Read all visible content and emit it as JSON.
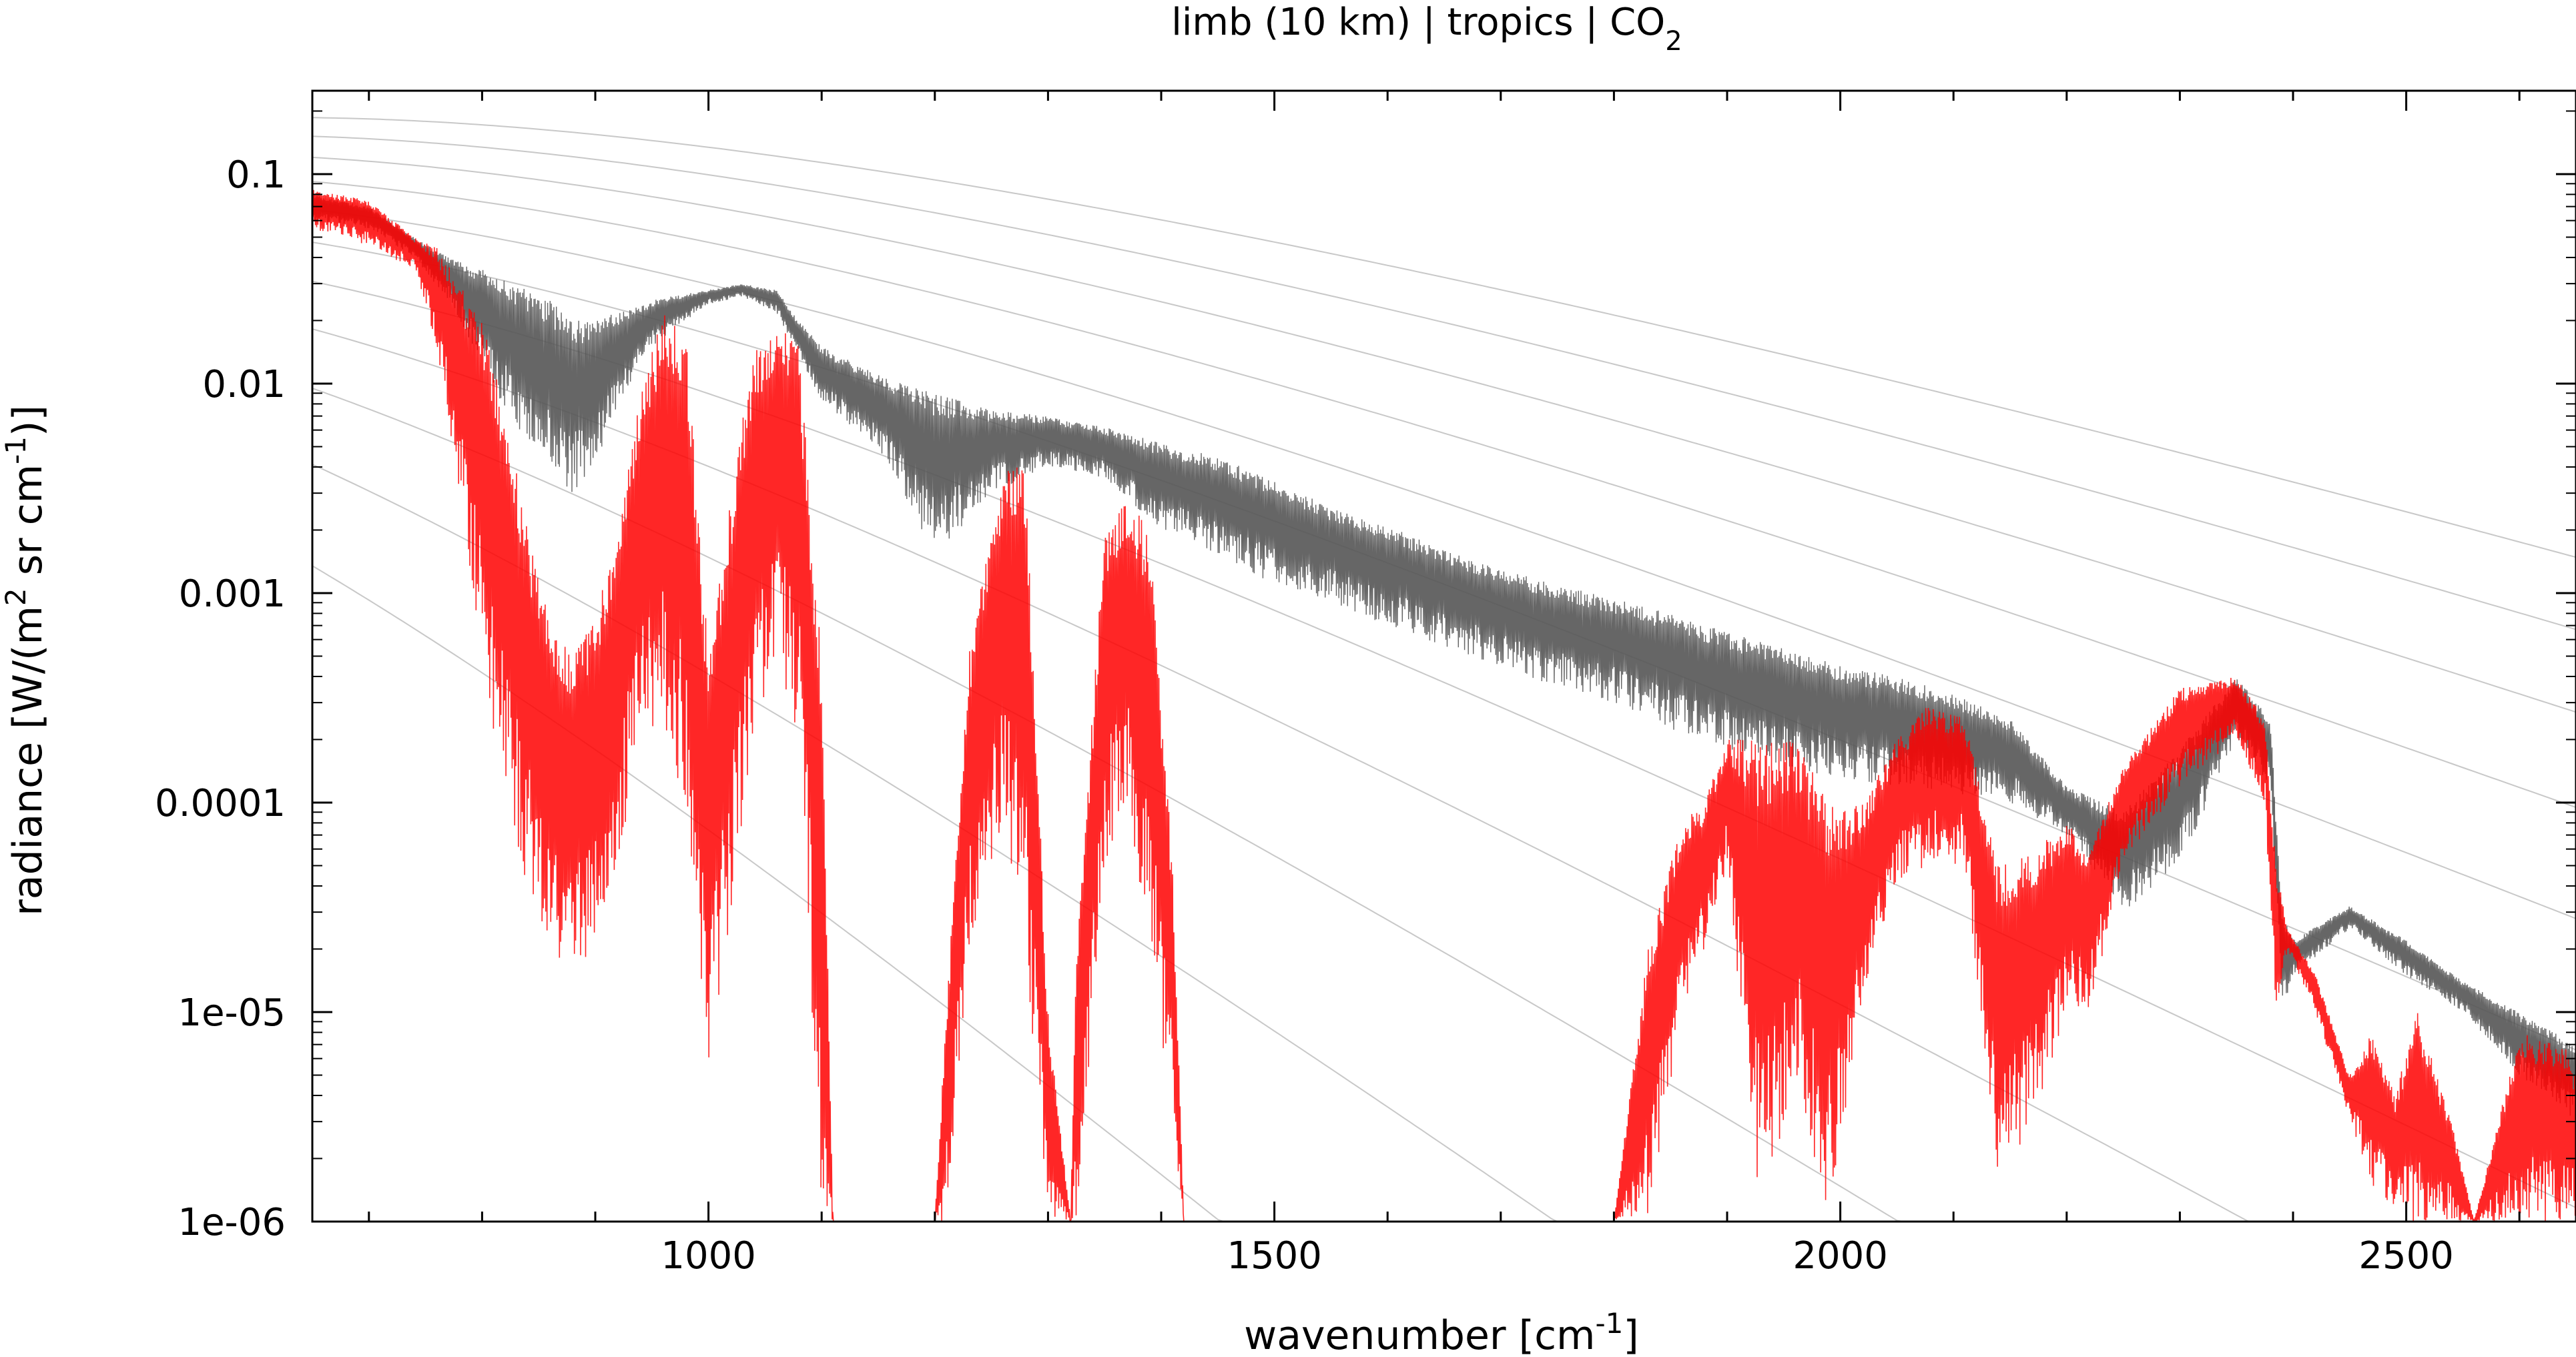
{
  "chart_data": {
    "type": "line",
    "title": "limb (10 km) | tropics | CO",
    "title_subscript": "2",
    "xlabel": {
      "main": "wavenumber [cm",
      "sup": "-1",
      "end": "]"
    },
    "ylabel": {
      "part1": "radiance [W/(m",
      "sup1": "2",
      "part2": " sr cm",
      "sup2": "-1",
      "part3": ")]"
    },
    "x_range": [
      650,
      2650
    ],
    "y_range": [
      1e-06,
      0.25
    ],
    "y_scale": "log",
    "grid": false,
    "x_ticks": [
      {
        "value": 1000,
        "label": "1000"
      },
      {
        "value": 1500,
        "label": "1500"
      },
      {
        "value": 2000,
        "label": "2000"
      },
      {
        "value": 2500,
        "label": "2500"
      }
    ],
    "y_ticks": [
      {
        "value": 0.1,
        "label": "0.1"
      },
      {
        "value": 0.01,
        "label": "0.01"
      },
      {
        "value": 0.001,
        "label": "0.001"
      },
      {
        "value": 0.0001,
        "label": "0.0001"
      },
      {
        "value": 1e-05,
        "label": "1e-05"
      },
      {
        "value": 1e-06,
        "label": "1e-06"
      }
    ],
    "colors": {
      "gray_series": "#555555",
      "red_series": "#ff0000",
      "red_light": "#ff8080",
      "planck_curves": "#c8c8c8"
    },
    "planck_temperatures_K": [
      320,
      300,
      280,
      260,
      240,
      220,
      200,
      180,
      160,
      140,
      120
    ],
    "series": [
      {
        "color": "#555555",
        "envelope": [
          [
            650,
            0.06,
            0.08
          ],
          [
            700,
            0.055,
            0.07
          ],
          [
            740,
            0.04,
            0.05
          ],
          [
            770,
            0.025,
            0.04
          ],
          [
            800,
            0.012,
            0.035
          ],
          [
            830,
            0.006,
            0.03
          ],
          [
            860,
            0.004,
            0.025
          ],
          [
            880,
            0.003,
            0.02
          ],
          [
            900,
            0.004,
            0.02
          ],
          [
            920,
            0.008,
            0.022
          ],
          [
            950,
            0.015,
            0.025
          ],
          [
            980,
            0.02,
            0.027
          ],
          [
            1000,
            0.024,
            0.028
          ],
          [
            1030,
            0.026,
            0.03
          ],
          [
            1060,
            0.022,
            0.028
          ],
          [
            1080,
            0.013,
            0.02
          ],
          [
            1100,
            0.008,
            0.015
          ],
          [
            1150,
            0.005,
            0.011
          ],
          [
            1200,
            0.0015,
            0.009
          ],
          [
            1250,
            0.003,
            0.0075
          ],
          [
            1300,
            0.004,
            0.007
          ],
          [
            1350,
            0.0035,
            0.0062
          ],
          [
            1400,
            0.002,
            0.0052
          ],
          [
            1450,
            0.0015,
            0.0045
          ],
          [
            1500,
            0.0011,
            0.0034
          ],
          [
            1550,
            0.0009,
            0.0026
          ],
          [
            1600,
            0.0007,
            0.0021
          ],
          [
            1650,
            0.00055,
            0.0016
          ],
          [
            1700,
            0.00045,
            0.0013
          ],
          [
            1750,
            0.00035,
            0.0011
          ],
          [
            1800,
            0.0003,
            0.00095
          ],
          [
            1850,
            0.00022,
            0.0008
          ],
          [
            1900,
            0.00018,
            0.00065
          ],
          [
            1950,
            0.00015,
            0.00055
          ],
          [
            2000,
            0.00013,
            0.00045
          ],
          [
            2050,
            0.00012,
            0.0004
          ],
          [
            2100,
            0.00011,
            0.00033
          ],
          [
            2150,
            0.0001,
            0.00025
          ],
          [
            2200,
            7e-05,
            0.00012
          ],
          [
            2250,
            3e-05,
            9e-05
          ],
          [
            2300,
            5e-05,
            0.00018
          ],
          [
            2350,
            0.0002,
            0.0004
          ],
          [
            2380,
            0.00012,
            0.00025
          ],
          [
            2390,
            1e-05,
            3e-05
          ],
          [
            2400,
            1.5e-05,
            2.2e-05
          ],
          [
            2450,
            2.5e-05,
            3.2e-05
          ],
          [
            2500,
            1.5e-05,
            2.2e-05
          ],
          [
            2550,
            1e-05,
            1.4e-05
          ],
          [
            2600,
            5e-06,
            1e-05
          ],
          [
            2650,
            3e-06,
            7e-06
          ]
        ]
      },
      {
        "color": "#ff0000",
        "envelope": [
          [
            650,
            0.055,
            0.085
          ],
          [
            700,
            0.045,
            0.075
          ],
          [
            740,
            0.035,
            0.05
          ],
          [
            760,
            0.015,
            0.045
          ],
          [
            780,
            0.003,
            0.03
          ],
          [
            800,
            0.0005,
            0.02
          ],
          [
            820,
            0.0001,
            0.008
          ],
          [
            840,
            4e-05,
            0.002
          ],
          [
            860,
            2e-05,
            0.0008
          ],
          [
            880,
            1.4e-05,
            0.0005
          ],
          [
            900,
            2e-05,
            0.0008
          ],
          [
            920,
            5e-05,
            0.002
          ],
          [
            940,
            0.0002,
            0.01
          ],
          [
            960,
            0.0002,
            0.022
          ],
          [
            980,
            0.0001,
            0.02
          ],
          [
            1000,
            5e-06,
            0.0005
          ],
          [
            1020,
            3e-05,
            0.003
          ],
          [
            1040,
            0.0002,
            0.015
          ],
          [
            1060,
            0.0005,
            0.02
          ],
          [
            1080,
            0.0002,
            0.015
          ],
          [
            1100,
            1e-06,
            0.0005
          ],
          [
            1110,
            1e-06,
            1e-06
          ],
          [
            1200,
            1e-06,
            1e-06
          ],
          [
            1210,
            1e-06,
            1e-05
          ],
          [
            1230,
            2e-05,
            0.0005
          ],
          [
            1260,
            8e-05,
            0.004
          ],
          [
            1280,
            2e-05,
            0.004
          ],
          [
            1300,
            1e-06,
            1e-05
          ],
          [
            1320,
            1e-06,
            1e-06
          ],
          [
            1325,
            1e-06,
            2e-05
          ],
          [
            1350,
            5e-05,
            0.002
          ],
          [
            1370,
            0.0001,
            0.003
          ],
          [
            1390,
            2e-05,
            0.002
          ],
          [
            1410,
            3e-06,
            5e-05
          ],
          [
            1420,
            1e-06,
            1e-06
          ],
          [
            1800,
            1e-06,
            1e-06
          ],
          [
            1830,
            1e-06,
            2e-05
          ],
          [
            1860,
            1e-05,
            8e-05
          ],
          [
            1880,
            2e-05,
            0.0001
          ],
          [
            1900,
            5e-05,
            0.0002
          ],
          [
            1930,
            1e-06,
            0.0002
          ],
          [
            1960,
            5e-06,
            0.0002
          ],
          [
            1990,
            1e-06,
            0.0001
          ],
          [
            2020,
            1e-05,
            0.0001
          ],
          [
            2050,
            4e-05,
            0.0002
          ],
          [
            2080,
            5e-05,
            0.0003
          ],
          [
            2110,
            5e-05,
            0.00025
          ],
          [
            2140,
            1.5e-06,
            5e-05
          ],
          [
            2170,
            3e-06,
            6e-05
          ],
          [
            2200,
            1e-05,
            8e-05
          ],
          [
            2220,
            1e-05,
            6e-05
          ],
          [
            2250,
            5e-05,
            0.00015
          ],
          [
            2300,
            0.00012,
            0.00035
          ],
          [
            2350,
            0.0002,
            0.0004
          ],
          [
            2375,
            0.0001,
            0.00025
          ],
          [
            2385,
            1e-05,
            5e-05
          ],
          [
            2395,
            2e-05,
            2.5e-05
          ],
          [
            2420,
            1e-05,
            1.5e-05
          ],
          [
            2450,
            3e-06,
            5e-06
          ],
          [
            2470,
            1.5e-06,
            8e-06
          ],
          [
            2490,
            1e-06,
            4e-06
          ],
          [
            2510,
            1e-06,
            1e-05
          ],
          [
            2540,
            1e-06,
            3e-06
          ],
          [
            2560,
            1e-06,
            1e-06
          ],
          [
            2600,
            1e-06,
            8e-06
          ],
          [
            2640,
            1e-06,
            7e-06
          ],
          [
            2650,
            1e-06,
            5e-06
          ]
        ]
      }
    ]
  }
}
